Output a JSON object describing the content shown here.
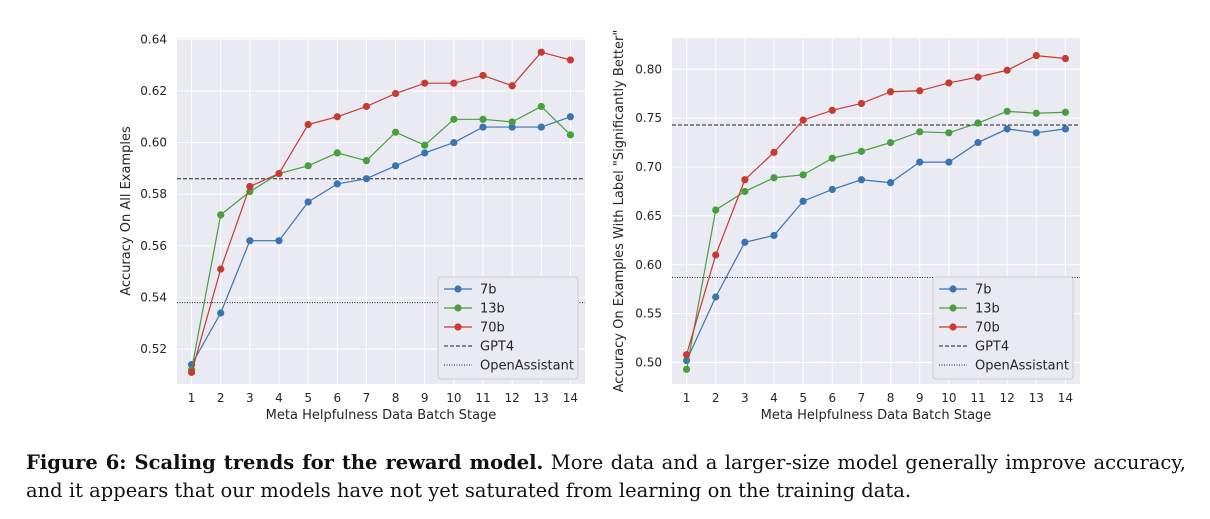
{
  "chart_data": [
    {
      "type": "line",
      "title": "",
      "xlabel": "Meta Helpfulness Data Batch Stage",
      "ylabel": "Accuracy On All Examples",
      "x": [
        1,
        2,
        3,
        4,
        5,
        6,
        7,
        8,
        9,
        10,
        11,
        12,
        13,
        14
      ],
      "xticks": [
        "1",
        "2",
        "3",
        "4",
        "5",
        "6",
        "7",
        "8",
        "9",
        "10",
        "11",
        "12",
        "13",
        "14"
      ],
      "xlim": [
        0.5,
        14.5
      ],
      "ylim": [
        0.5065,
        0.6405
      ],
      "yticks": [
        0.52,
        0.54,
        0.56,
        0.58,
        0.6,
        0.62,
        0.64
      ],
      "ytick_labels": [
        "0.52",
        "0.54",
        "0.56",
        "0.58",
        "0.60",
        "0.62",
        "0.64"
      ],
      "series": [
        {
          "name": "7b",
          "color": "#3b75af",
          "values": [
            0.514,
            0.534,
            0.562,
            0.562,
            0.577,
            0.584,
            0.586,
            0.591,
            0.596,
            0.6,
            0.606,
            0.606,
            0.606,
            0.61
          ]
        },
        {
          "name": "13b",
          "color": "#4a9e3f",
          "values": [
            0.512,
            0.572,
            0.581,
            0.588,
            0.591,
            0.596,
            0.593,
            0.604,
            0.599,
            0.609,
            0.609,
            0.608,
            0.614,
            0.603
          ]
        },
        {
          "name": "70b",
          "color": "#c83a32",
          "values": [
            0.511,
            0.551,
            0.583,
            0.588,
            0.607,
            0.61,
            0.614,
            0.619,
            0.623,
            0.623,
            0.626,
            0.622,
            0.635,
            0.632
          ]
        }
      ],
      "reference_lines": [
        {
          "name": "GPT4",
          "value": 0.586,
          "style": "dashed"
        },
        {
          "name": "OpenAssistant",
          "value": 0.538,
          "style": "dotted"
        }
      ],
      "legend_location": "bottom-right",
      "grid": true
    },
    {
      "type": "line",
      "title": "",
      "xlabel": "Meta Helpfulness Data Batch Stage",
      "ylabel": "Accuracy On Examples With Label \"Significantly Better\"",
      "x": [
        1,
        2,
        3,
        4,
        5,
        6,
        7,
        8,
        9,
        10,
        11,
        12,
        13,
        14
      ],
      "xticks": [
        "1",
        "2",
        "3",
        "4",
        "5",
        "6",
        "7",
        "8",
        "9",
        "10",
        "11",
        "12",
        "13",
        "14"
      ],
      "xlim": [
        0.5,
        14.5
      ],
      "ylim": [
        0.478,
        0.832
      ],
      "yticks": [
        0.5,
        0.55,
        0.6,
        0.65,
        0.7,
        0.75,
        0.8
      ],
      "ytick_labels": [
        "0.50",
        "0.55",
        "0.60",
        "0.65",
        "0.70",
        "0.75",
        "0.80"
      ],
      "series": [
        {
          "name": "7b",
          "color": "#3b75af",
          "values": [
            0.502,
            0.567,
            0.623,
            0.63,
            0.665,
            0.677,
            0.687,
            0.684,
            0.705,
            0.705,
            0.725,
            0.739,
            0.735,
            0.739
          ]
        },
        {
          "name": "13b",
          "color": "#4a9e3f",
          "values": [
            0.493,
            0.656,
            0.675,
            0.689,
            0.692,
            0.709,
            0.716,
            0.725,
            0.736,
            0.735,
            0.745,
            0.757,
            0.755,
            0.756
          ]
        },
        {
          "name": "70b",
          "color": "#c83a32",
          "values": [
            0.508,
            0.61,
            0.687,
            0.715,
            0.748,
            0.758,
            0.765,
            0.777,
            0.778,
            0.786,
            0.792,
            0.799,
            0.814,
            0.811
          ]
        }
      ],
      "reference_lines": [
        {
          "name": "GPT4",
          "value": 0.743,
          "style": "dashed"
        },
        {
          "name": "OpenAssistant",
          "value": 0.587,
          "style": "dotted"
        }
      ],
      "legend_location": "bottom-right",
      "grid": true
    }
  ],
  "caption": {
    "label": "Figure 6: Scaling trends for the reward model.",
    "text": " More data and a larger-size model generally improve accuracy, and it appears that our models have not yet saturated from learning on the training data."
  }
}
